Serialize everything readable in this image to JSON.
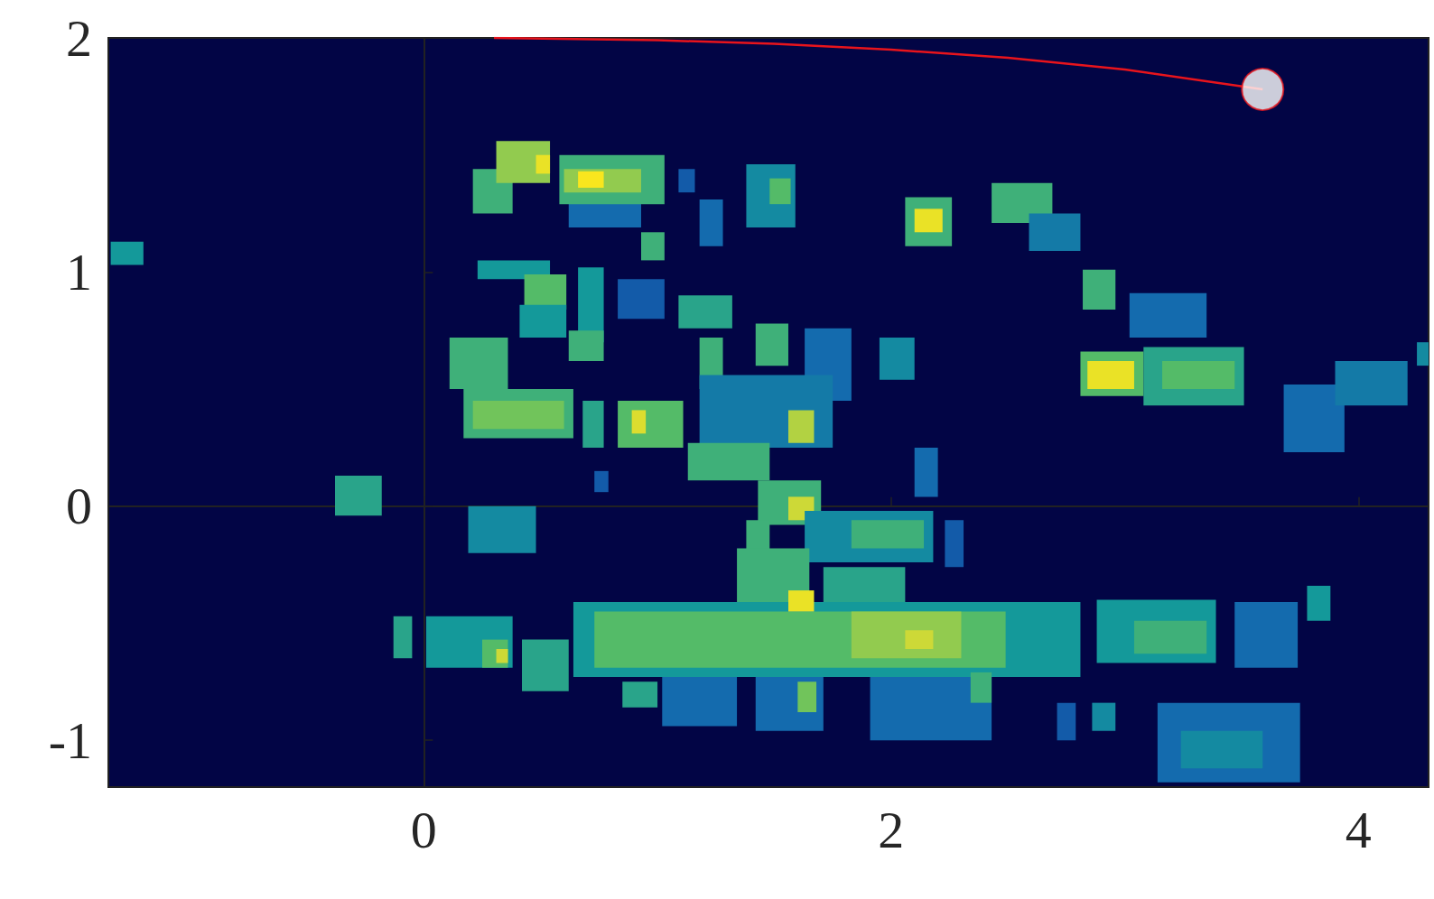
{
  "chart_data": {
    "type": "heatmap",
    "xlim": [
      -1.35,
      4.3
    ],
    "ylim": [
      -1.2,
      2
    ],
    "xticks": [
      0,
      2,
      4
    ],
    "yticks": [
      -1,
      0,
      1,
      2
    ],
    "grid": false,
    "clim": [
      0,
      1
    ],
    "cells": [
      [
        0.21,
        0.38,
        1.25,
        1.44,
        0.6
      ],
      [
        0.31,
        0.54,
        1.38,
        1.56,
        0.75
      ],
      [
        0.48,
        0.54,
        1.42,
        1.5,
        0.95
      ],
      [
        0.62,
        0.93,
        1.19,
        1.32,
        0.35
      ],
      [
        0.58,
        1.03,
        1.29,
        1.5,
        0.6
      ],
      [
        0.6,
        0.93,
        1.34,
        1.44,
        0.75
      ],
      [
        0.66,
        0.77,
        1.36,
        1.43,
        1.0
      ],
      [
        0.93,
        1.03,
        1.05,
        1.17,
        0.6
      ],
      [
        1.09,
        1.16,
        1.34,
        1.44,
        0.3
      ],
      [
        1.18,
        1.28,
        1.11,
        1.31,
        0.35
      ],
      [
        1.38,
        1.59,
        1.19,
        1.46,
        0.45
      ],
      [
        1.48,
        1.57,
        1.29,
        1.4,
        0.65
      ],
      [
        2.06,
        2.26,
        1.11,
        1.32,
        0.6
      ],
      [
        2.1,
        2.22,
        1.17,
        1.27,
        0.95
      ],
      [
        2.43,
        2.69,
        1.21,
        1.38,
        0.6
      ],
      [
        2.59,
        2.81,
        1.09,
        1.25,
        0.4
      ],
      [
        2.82,
        2.96,
        0.84,
        1.01,
        0.6
      ],
      [
        3.02,
        3.35,
        0.72,
        0.91,
        0.35
      ],
      [
        2.81,
        3.08,
        0.47,
        0.66,
        0.65
      ],
      [
        2.84,
        3.04,
        0.5,
        0.62,
        0.95
      ],
      [
        3.08,
        3.51,
        0.43,
        0.68,
        0.55
      ],
      [
        3.16,
        3.47,
        0.5,
        0.62,
        0.65
      ],
      [
        3.68,
        3.94,
        0.23,
        0.52,
        0.35
      ],
      [
        3.9,
        4.21,
        0.43,
        0.62,
        0.4
      ],
      [
        4.25,
        4.3,
        0.6,
        0.7,
        0.45
      ],
      [
        -1.34,
        -1.2,
        1.03,
        1.13,
        0.5
      ],
      [
        0.23,
        0.54,
        0.97,
        1.05,
        0.5
      ],
      [
        0.43,
        0.61,
        0.84,
        0.99,
        0.65
      ],
      [
        0.41,
        0.61,
        0.72,
        0.86,
        0.5
      ],
      [
        0.11,
        0.36,
        0.5,
        0.72,
        0.6
      ],
      [
        0.66,
        0.77,
        0.7,
        1.02,
        0.5
      ],
      [
        0.83,
        1.03,
        0.8,
        0.97,
        0.3
      ],
      [
        0.62,
        0.77,
        0.62,
        0.75,
        0.6
      ],
      [
        1.09,
        1.32,
        0.76,
        0.9,
        0.55
      ],
      [
        1.18,
        1.28,
        0.5,
        0.72,
        0.6
      ],
      [
        1.42,
        1.56,
        0.6,
        0.78,
        0.6
      ],
      [
        1.63,
        1.83,
        0.45,
        0.76,
        0.35
      ],
      [
        1.95,
        2.1,
        0.54,
        0.72,
        0.45
      ],
      [
        0.17,
        0.64,
        0.29,
        0.5,
        0.6
      ],
      [
        0.21,
        0.6,
        0.33,
        0.45,
        0.7
      ],
      [
        0.68,
        0.77,
        0.25,
        0.45,
        0.55
      ],
      [
        0.83,
        1.11,
        0.25,
        0.45,
        0.65
      ],
      [
        0.89,
        0.95,
        0.31,
        0.41,
        0.9
      ],
      [
        1.18,
        1.75,
        0.25,
        0.56,
        0.4
      ],
      [
        1.56,
        1.67,
        0.27,
        0.41,
        0.8
      ],
      [
        1.13,
        1.48,
        0.11,
        0.27,
        0.6
      ],
      [
        -0.38,
        -0.18,
        -0.04,
        0.13,
        0.55
      ],
      [
        0.73,
        0.79,
        0.06,
        0.15,
        0.3
      ],
      [
        2.1,
        2.2,
        0.04,
        0.25,
        0.35
      ],
      [
        0.19,
        0.48,
        -0.2,
        0,
        0.45
      ],
      [
        1.43,
        1.7,
        -0.08,
        0.11,
        0.6
      ],
      [
        1.56,
        1.67,
        -0.06,
        0.04,
        0.85
      ],
      [
        1.63,
        2.18,
        -0.24,
        -0.02,
        0.45
      ],
      [
        1.83,
        2.14,
        -0.18,
        -0.06,
        0.6
      ],
      [
        1.38,
        1.48,
        -0.38,
        -0.06,
        0.6
      ],
      [
        2.23,
        2.31,
        -0.26,
        -0.06,
        0.3
      ],
      [
        0.85,
        1.0,
        -0.86,
        -0.75,
        0.55
      ],
      [
        1.02,
        1.34,
        -0.94,
        -0.69,
        0.35
      ],
      [
        1.42,
        1.71,
        -0.96,
        -0.71,
        0.35
      ],
      [
        1.91,
        2.43,
        -1.0,
        -0.67,
        0.35
      ],
      [
        2.71,
        2.79,
        -1.0,
        -0.84,
        0.3
      ],
      [
        2.86,
        2.96,
        -0.96,
        -0.84,
        0.45
      ],
      [
        3.14,
        3.75,
        -1.18,
        -0.84,
        0.35
      ],
      [
        3.24,
        3.59,
        -1.12,
        -0.96,
        0.45
      ],
      [
        -0.13,
        -0.05,
        -0.65,
        -0.47,
        0.55
      ],
      [
        0.01,
        0.38,
        -0.69,
        -0.47,
        0.5
      ],
      [
        0.25,
        0.36,
        -0.69,
        -0.57,
        0.65
      ],
      [
        0.42,
        0.62,
        -0.79,
        -0.57,
        0.55
      ],
      [
        1.34,
        1.65,
        -0.41,
        -0.18,
        0.6
      ],
      [
        1.71,
        2.06,
        -0.43,
        -0.26,
        0.55
      ],
      [
        0.64,
        2.81,
        -0.73,
        -0.41,
        0.5
      ],
      [
        0.73,
        2.49,
        -0.69,
        -0.45,
        0.65
      ],
      [
        1.83,
        2.3,
        -0.65,
        -0.45,
        0.75
      ],
      [
        1.56,
        1.67,
        -0.45,
        -0.36,
        0.95
      ],
      [
        2.06,
        2.18,
        -0.61,
        -0.53,
        0.85
      ],
      [
        0.31,
        0.36,
        -0.67,
        -0.61,
        0.85
      ],
      [
        2.88,
        3.39,
        -0.67,
        -0.4,
        0.5
      ],
      [
        3.04,
        3.35,
        -0.63,
        -0.49,
        0.6
      ],
      [
        3.47,
        3.74,
        -0.69,
        -0.41,
        0.35
      ],
      [
        3.78,
        3.88,
        -0.49,
        -0.34,
        0.5
      ],
      [
        1.6,
        1.68,
        -0.88,
        -0.75,
        0.7
      ],
      [
        2.34,
        2.43,
        -0.84,
        -0.71,
        0.6
      ]
    ],
    "series": [
      {
        "type": "line",
        "color": "#e8141c",
        "marker": "circle",
        "x": [
          0.3,
          1.0,
          1.5,
          2.0,
          2.5,
          3.0,
          3.59
        ],
        "values": [
          2.0,
          1.99,
          1.975,
          1.95,
          1.915,
          1.865,
          1.78
        ]
      }
    ]
  }
}
